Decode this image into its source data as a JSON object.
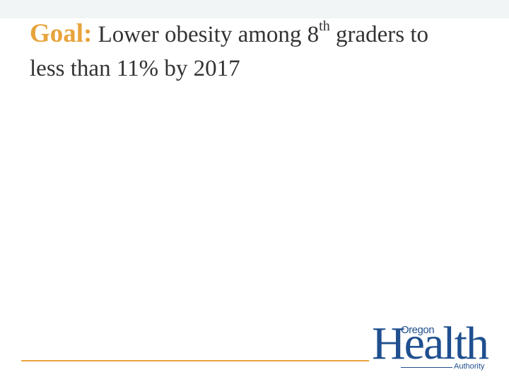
{
  "title": {
    "label": "Goal:",
    "text_before": "Lower obesity among 8",
    "superscript": "th",
    "text_line1_end": "graders to",
    "text_line2": "less than 11% by 2017"
  },
  "logo": {
    "top": "Oregon",
    "main": "Health",
    "bottom": "Authority"
  }
}
